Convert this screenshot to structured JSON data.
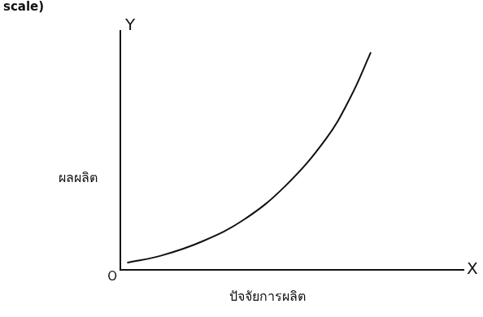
{
  "chart_data": {
    "type": "line",
    "title": "scale)",
    "x_label": "ปัจจัยการผลิต",
    "y_label": "ผลผลิต",
    "x_axis_symbol": "X",
    "y_axis_symbol": "Y",
    "origin_label": "O",
    "x": [
      0.2,
      1.2,
      2.4,
      3.6,
      4.8,
      6.0,
      6.7,
      7.3
    ],
    "values": [
      0.3,
      0.6,
      1.2,
      2.1,
      3.5,
      5.5,
      7.2,
      9.1
    ],
    "color": "#111111",
    "xlim": [
      0,
      10
    ],
    "ylim": [
      0,
      10
    ],
    "grid": false,
    "tick_labels": false
  }
}
